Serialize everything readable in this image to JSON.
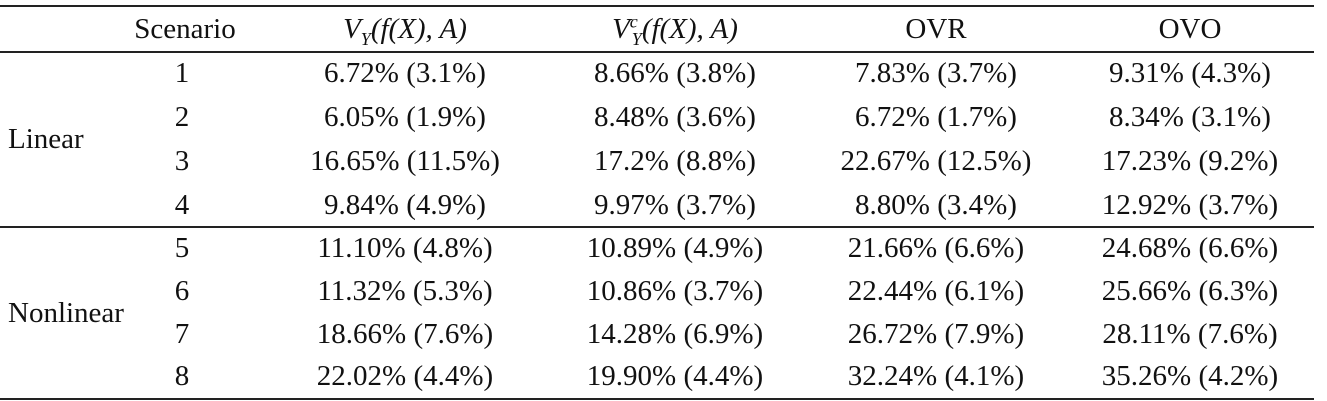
{
  "table": {
    "headers": {
      "scenario": "Scenario",
      "vy": {
        "base": "V",
        "sub": "Y",
        "args": "(f(X), A)"
      },
      "vyc": {
        "base": "V",
        "sub": "Y",
        "sup": "c",
        "args": "(f(X), A)"
      },
      "ovr": "OVR",
      "ovo": "OVO"
    },
    "groups": [
      {
        "label": "Linear",
        "rows": [
          {
            "scenario": "1",
            "vy": "6.72% (3.1%)",
            "vyc": "8.66% (3.8%)",
            "ovr": "7.83% (3.7%)",
            "ovo": "9.31% (4.3%)"
          },
          {
            "scenario": "2",
            "vy": "6.05% (1.9%)",
            "vyc": "8.48% (3.6%)",
            "ovr": "6.72% (1.7%)",
            "ovo": "8.34% (3.1%)"
          },
          {
            "scenario": "3",
            "vy": "16.65% (11.5%)",
            "vyc": "17.2% (8.8%)",
            "ovr": "22.67% (12.5%)",
            "ovo": "17.23% (9.2%)"
          },
          {
            "scenario": "4",
            "vy": "9.84% (4.9%)",
            "vyc": "9.97% (3.7%)",
            "ovr": "8.80% (3.4%)",
            "ovo": "12.92% (3.7%)"
          }
        ]
      },
      {
        "label": "Nonlinear",
        "rows": [
          {
            "scenario": "5",
            "vy": "11.10% (4.8%)",
            "vyc": "10.89% (4.9%)",
            "ovr": "21.66% (6.6%)",
            "ovo": "24.68% (6.6%)"
          },
          {
            "scenario": "6",
            "vy": "11.32% (5.3%)",
            "vyc": "10.86% (3.7%)",
            "ovr": "22.44% (6.1%)",
            "ovo": "25.66% (6.3%)"
          },
          {
            "scenario": "7",
            "vy": "18.66% (7.6%)",
            "vyc": "14.28% (6.9%)",
            "ovr": "26.72% (7.9%)",
            "ovo": "28.11% (7.6%)"
          },
          {
            "scenario": "8",
            "vy": "22.02% (4.4%)",
            "vyc": "19.90% (4.4%)",
            "ovr": "32.24% (4.1%)",
            "ovo": "35.26% (4.2%)"
          }
        ]
      }
    ]
  }
}
